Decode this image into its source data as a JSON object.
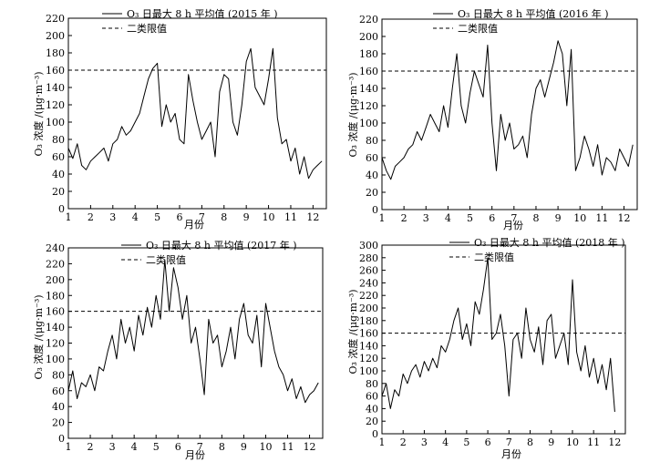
{
  "chart_data": [
    {
      "type": "line",
      "title": "",
      "xlabel": "月份",
      "ylabel": "O₃ 浓度 /(μg·m⁻³)",
      "xlim": [
        1,
        12.6
      ],
      "ylim": [
        0,
        220
      ],
      "xticks": [
        "1",
        "2",
        "3",
        "4",
        "5",
        "6",
        "7",
        "8",
        "9",
        "10",
        "11",
        "12"
      ],
      "yticks": [
        "0",
        "20",
        "40",
        "60",
        "80",
        "100",
        "120",
        "140",
        "160",
        "180",
        "200",
        "220"
      ],
      "threshold": 160,
      "series": [
        {
          "name": "O₃ 日最大 8 h 平均值 (2015 年 )",
          "x": [
            1.0,
            1.2,
            1.4,
            1.6,
            1.8,
            2.0,
            2.2,
            2.4,
            2.6,
            2.8,
            3.0,
            3.2,
            3.4,
            3.6,
            3.8,
            4.0,
            4.2,
            4.4,
            4.6,
            4.8,
            5.0,
            5.2,
            5.4,
            5.6,
            5.8,
            6.0,
            6.2,
            6.4,
            6.6,
            6.8,
            7.0,
            7.2,
            7.4,
            7.6,
            7.8,
            8.0,
            8.2,
            8.4,
            8.6,
            8.8,
            9.0,
            9.2,
            9.4,
            9.6,
            9.8,
            10.0,
            10.2,
            10.4,
            10.6,
            10.8,
            11.0,
            11.2,
            11.4,
            11.6,
            11.8,
            12.0,
            12.2,
            12.4
          ],
          "values": [
            70,
            58,
            75,
            50,
            45,
            55,
            60,
            65,
            70,
            55,
            75,
            80,
            95,
            85,
            90,
            100,
            110,
            130,
            150,
            162,
            168,
            95,
            120,
            100,
            110,
            80,
            75,
            155,
            125,
            100,
            80,
            90,
            100,
            60,
            135,
            155,
            150,
            100,
            85,
            120,
            170,
            185,
            140,
            130,
            120,
            150,
            185,
            105,
            75,
            80,
            55,
            70,
            40,
            60,
            35,
            45,
            50,
            55
          ]
        }
      ],
      "legend": "top-center"
    },
    {
      "type": "line",
      "title": "",
      "xlabel": "月份",
      "ylabel": "O₃ 浓度 /(μg·m⁻³)",
      "xlim": [
        1,
        12.6
      ],
      "ylim": [
        0,
        220
      ],
      "xticks": [
        "1",
        "2",
        "3",
        "4",
        "5",
        "6",
        "7",
        "8",
        "9",
        "10",
        "11",
        "12"
      ],
      "yticks": [
        "0",
        "20",
        "40",
        "60",
        "80",
        "100",
        "120",
        "140",
        "160",
        "180",
        "200",
        "220"
      ],
      "threshold": 160,
      "series": [
        {
          "name": "O₃ 日最大 8 h 平均值 (2016 年 )",
          "x": [
            1.0,
            1.2,
            1.4,
            1.6,
            1.8,
            2.0,
            2.2,
            2.4,
            2.6,
            2.8,
            3.0,
            3.2,
            3.4,
            3.6,
            3.8,
            4.0,
            4.2,
            4.4,
            4.6,
            4.8,
            5.0,
            5.2,
            5.4,
            5.6,
            5.8,
            6.0,
            6.2,
            6.4,
            6.6,
            6.8,
            7.0,
            7.2,
            7.4,
            7.6,
            7.8,
            8.0,
            8.2,
            8.4,
            8.6,
            8.8,
            9.0,
            9.2,
            9.4,
            9.6,
            9.8,
            10.0,
            10.2,
            10.4,
            10.6,
            10.8,
            11.0,
            11.2,
            11.4,
            11.6,
            11.8,
            12.0,
            12.2,
            12.4
          ],
          "values": [
            60,
            45,
            35,
            50,
            55,
            60,
            70,
            75,
            90,
            80,
            95,
            110,
            100,
            90,
            120,
            95,
            140,
            180,
            120,
            100,
            135,
            160,
            145,
            130,
            190,
            100,
            45,
            110,
            80,
            100,
            70,
            75,
            85,
            60,
            110,
            140,
            150,
            130,
            150,
            170,
            195,
            180,
            120,
            185,
            45,
            60,
            85,
            70,
            50,
            75,
            40,
            60,
            55,
            45,
            70,
            60,
            50,
            75
          ]
        }
      ],
      "legend": "top-center"
    },
    {
      "type": "line",
      "title": "",
      "xlabel": "月份",
      "ylabel": "O₃ 浓度 /(μg·m⁻³)",
      "xlim": [
        1,
        12.6
      ],
      "ylim": [
        0,
        240
      ],
      "xticks": [
        "1",
        "2",
        "3",
        "4",
        "5",
        "6",
        "7",
        "8",
        "9",
        "10",
        "11",
        "12"
      ],
      "yticks": [
        "0",
        "20",
        "40",
        "60",
        "80",
        "100",
        "120",
        "140",
        "160",
        "180",
        "200",
        "220",
        "240"
      ],
      "threshold": 160,
      "series": [
        {
          "name": "O₃ 日最大 8 h 平均值 (2017 年 )",
          "x": [
            1.0,
            1.2,
            1.4,
            1.6,
            1.8,
            2.0,
            2.2,
            2.4,
            2.6,
            2.8,
            3.0,
            3.2,
            3.4,
            3.6,
            3.8,
            4.0,
            4.2,
            4.4,
            4.6,
            4.8,
            5.0,
            5.2,
            5.4,
            5.6,
            5.8,
            6.0,
            6.2,
            6.4,
            6.6,
            6.8,
            7.0,
            7.2,
            7.4,
            7.6,
            7.8,
            8.0,
            8.2,
            8.4,
            8.6,
            8.8,
            9.0,
            9.2,
            9.4,
            9.6,
            9.8,
            10.0,
            10.2,
            10.4,
            10.6,
            10.8,
            11.0,
            11.2,
            11.4,
            11.6,
            11.8,
            12.0,
            12.2,
            12.4
          ],
          "values": [
            60,
            85,
            50,
            70,
            65,
            80,
            60,
            90,
            85,
            110,
            130,
            100,
            150,
            120,
            140,
            110,
            155,
            130,
            165,
            140,
            180,
            150,
            225,
            160,
            215,
            190,
            150,
            180,
            120,
            140,
            100,
            55,
            150,
            120,
            130,
            90,
            110,
            140,
            100,
            150,
            170,
            130,
            120,
            155,
            90,
            170,
            140,
            110,
            90,
            80,
            60,
            75,
            50,
            65,
            45,
            55,
            60,
            70
          ]
        }
      ],
      "legend": "top-center"
    },
    {
      "type": "line",
      "title": "",
      "xlabel": "月份",
      "ylabel": "O₃ 浓度 /(μg·m⁻³)",
      "xlim": [
        1,
        12.5
      ],
      "ylim": [
        0,
        300
      ],
      "xticks": [
        "1",
        "2",
        "3",
        "4",
        "5",
        "6",
        "7",
        "8",
        "9",
        "10",
        "11",
        "12"
      ],
      "yticks": [
        "0",
        "20",
        "40",
        "60",
        "80",
        "100",
        "120",
        "140",
        "160",
        "180",
        "200",
        "220",
        "240",
        "260",
        "280",
        "300"
      ],
      "threshold": 160,
      "series": [
        {
          "name": "O₃ 日最大 8 h 平均值 (2018 年 )",
          "x": [
            1.0,
            1.2,
            1.4,
            1.6,
            1.8,
            2.0,
            2.2,
            2.4,
            2.6,
            2.8,
            3.0,
            3.2,
            3.4,
            3.6,
            3.8,
            4.0,
            4.2,
            4.4,
            4.6,
            4.8,
            5.0,
            5.2,
            5.4,
            5.6,
            5.8,
            6.0,
            6.2,
            6.4,
            6.6,
            6.8,
            7.0,
            7.2,
            7.4,
            7.6,
            7.8,
            8.0,
            8.2,
            8.4,
            8.6,
            8.8,
            9.0,
            9.2,
            9.4,
            9.6,
            9.8,
            10.0,
            10.2,
            10.4,
            10.6,
            10.8,
            11.0,
            11.2,
            11.4,
            11.6,
            11.8,
            12.0
          ],
          "values": [
            60,
            80,
            40,
            70,
            60,
            95,
            80,
            100,
            110,
            90,
            115,
            100,
            120,
            105,
            140,
            130,
            150,
            180,
            200,
            150,
            175,
            140,
            210,
            190,
            230,
            280,
            150,
            160,
            190,
            140,
            60,
            150,
            160,
            120,
            200,
            150,
            130,
            170,
            110,
            180,
            190,
            120,
            140,
            160,
            110,
            245,
            130,
            100,
            140,
            90,
            120,
            80,
            110,
            70,
            120,
            35
          ]
        }
      ],
      "legend": "top-center"
    }
  ],
  "legend_threshold_label": "二类限值",
  "colors": {
    "line": "#000000",
    "axis": "#000000",
    "background": "#ffffff"
  }
}
